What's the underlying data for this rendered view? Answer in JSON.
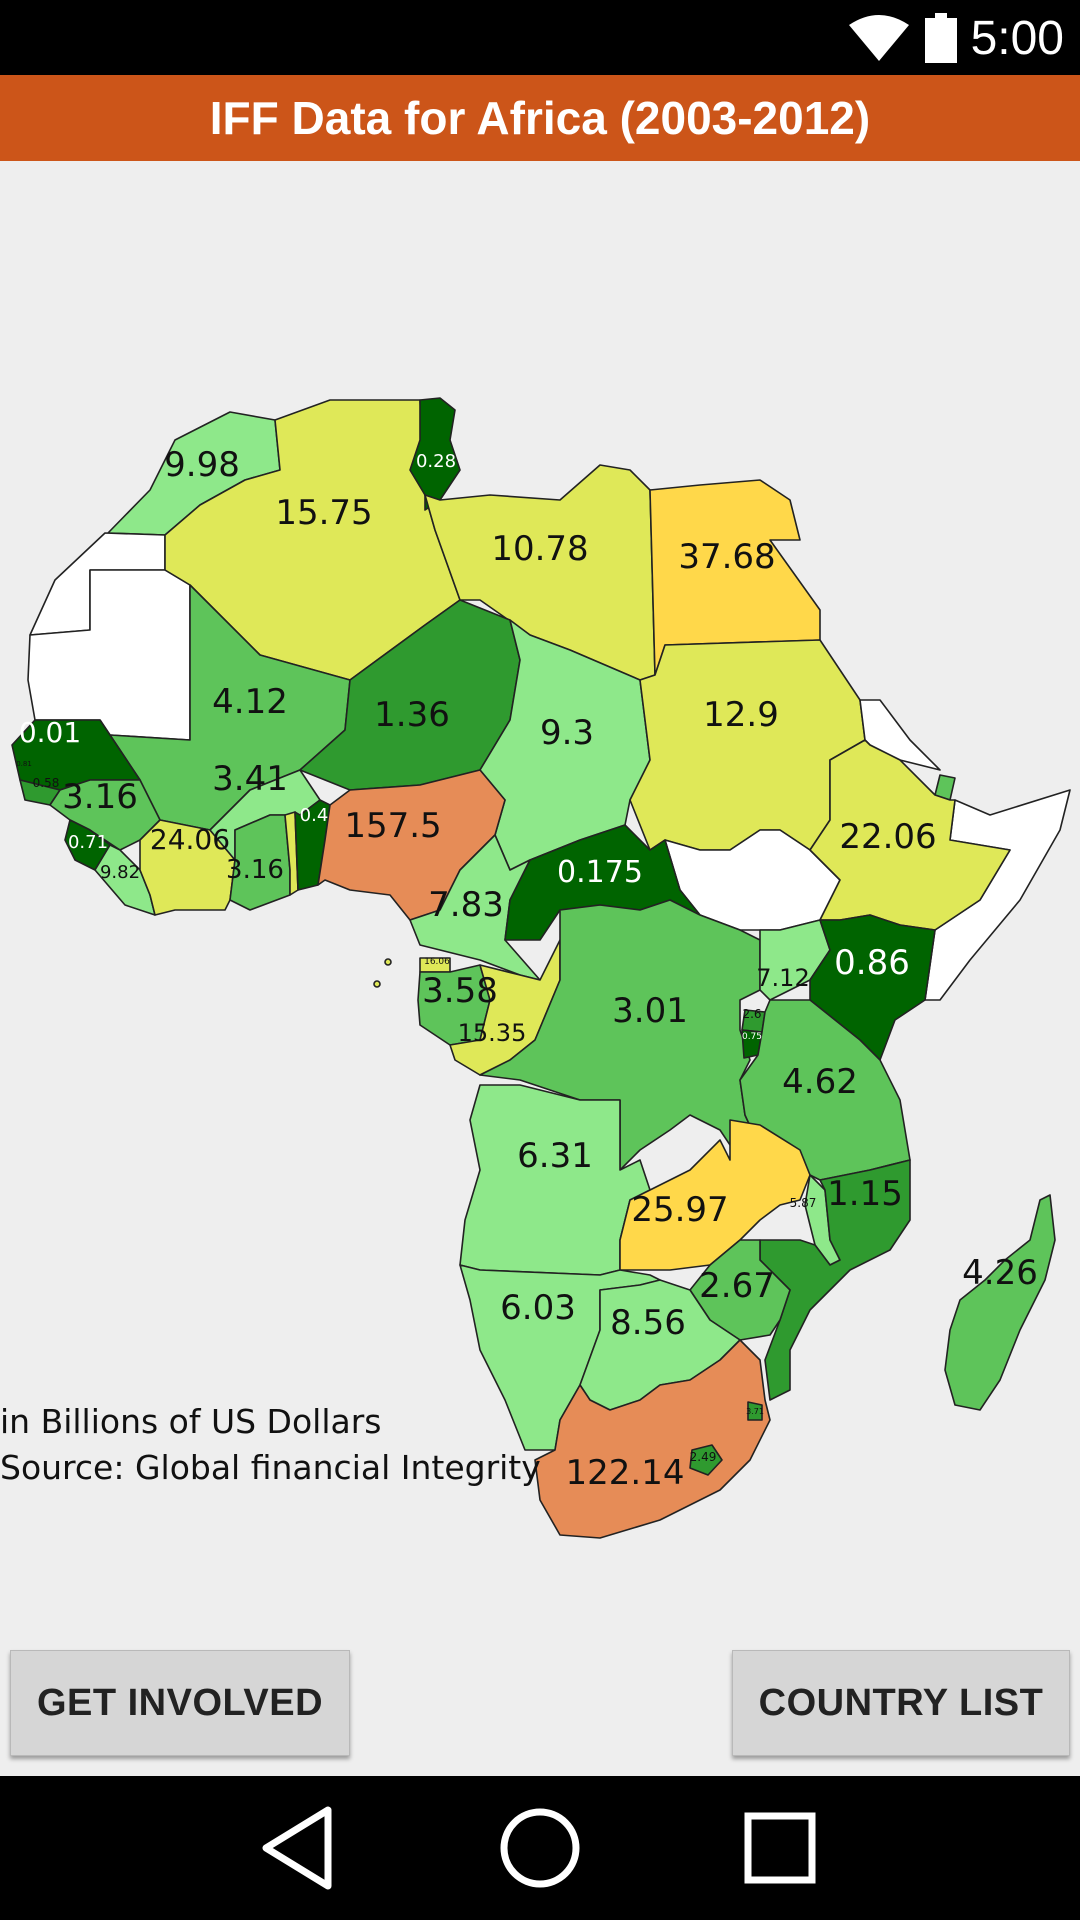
{
  "status": {
    "time": "5:00",
    "icons": [
      "wifi-icon",
      "battery-icon"
    ]
  },
  "app": {
    "title": "IFF Data for Africa (2003-2012)",
    "color": "#cc5519"
  },
  "map": {
    "caption_units": "in Billions of US Dollars",
    "caption_source": "Source: Global financial Integrity",
    "legend_colors": {
      "lowest": "#006400",
      "low": "#2f9a2f",
      "mid_low": "#5ec45a",
      "mid": "#8ee88a",
      "mid_high": "#dfe858",
      "high": "#ffd84a",
      "highest": "#e68c57"
    },
    "country_values": [
      "9.98",
      "15.75",
      "0.28",
      "10.78",
      "37.68",
      "4.12",
      "1.36",
      "9.3",
      "12.9",
      "0.01",
      "3.41",
      "0.58",
      "3.16",
      "0.71",
      "24.06",
      "3.16",
      "0.4",
      "157.5",
      "9.82",
      "22.06",
      "0.175",
      "7.83",
      "16.06",
      "3.58",
      "15.35",
      "3.01",
      "7.12",
      "0.86",
      "2.6",
      "0.75",
      "4.62",
      "6.31",
      "25.97",
      "1.15",
      "5.87",
      "2.67",
      "4.26",
      "6.03",
      "8.56",
      "122.14",
      "2.49",
      "3.71",
      "0.81"
    ]
  },
  "buttons": {
    "left": "GET INVOLVED",
    "right": "COUNTRY LIST"
  },
  "nav": {
    "icons": [
      "back-icon",
      "home-icon",
      "recents-icon"
    ]
  }
}
